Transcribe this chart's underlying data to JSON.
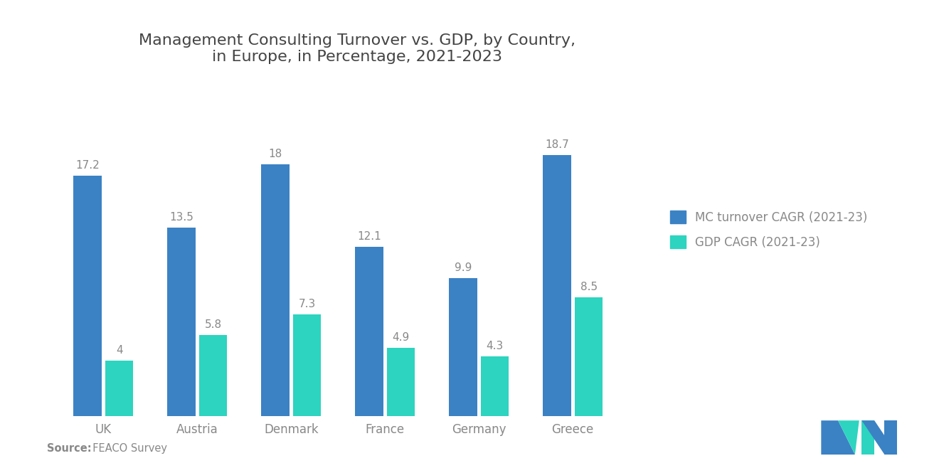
{
  "title": "Management Consulting Turnover vs. GDP, by Country,\nin Europe, in Percentage, 2021-2023",
  "categories": [
    "UK",
    "Austria",
    "Denmark",
    "France",
    "Germany",
    "Greece"
  ],
  "mc_turnover": [
    17.2,
    13.5,
    18.0,
    12.1,
    9.9,
    18.7
  ],
  "gdp_cagr": [
    4.0,
    5.8,
    7.3,
    4.9,
    4.3,
    8.5
  ],
  "mc_color": "#3b82c4",
  "gdp_color": "#2dd4bf",
  "bar_width": 0.3,
  "legend_mc": "MC turnover CAGR (2021-23)",
  "legend_gdp": "GDP CAGR (2021-23)",
  "source_bold": "Source:",
  "source_rest": "  FEACO Survey",
  "title_fontsize": 16,
  "label_fontsize": 11,
  "tick_fontsize": 12,
  "legend_fontsize": 12,
  "ylim": [
    0,
    23
  ],
  "background_color": "#ffffff",
  "text_color": "#888888"
}
